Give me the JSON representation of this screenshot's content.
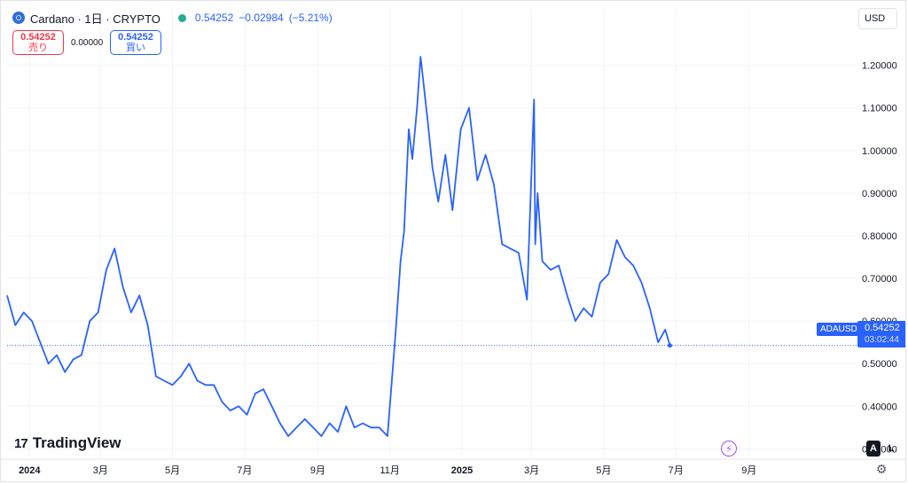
{
  "header": {
    "symbol": "Cardano · 1日 · CRYPTO",
    "last": "0.54252",
    "change": "−0.02984",
    "change_pct": "(−5.21%)"
  },
  "trade": {
    "sell_price": "0.54252",
    "sell_label": "売り",
    "spread": "0.00000",
    "buy_price": "0.54252",
    "buy_label": "買い"
  },
  "currency": "USD",
  "price_tag": {
    "symbol": "ADAUSD",
    "price": "0.54252",
    "countdown": "03:02:44"
  },
  "brand": {
    "name": "TradingView"
  },
  "controls": {
    "auto": "A",
    "log": "L"
  },
  "colors": {
    "line": "#2962ff",
    "grid": "#f0f3fa",
    "last_line": "#2962ff",
    "sell": "#f23645",
    "buy": "#2962ff"
  },
  "chart_data": {
    "type": "line",
    "series": [
      {
        "x": [
          "2023-12-13",
          "2023-12-20",
          "2023-12-27",
          "2024-01-03",
          "2024-01-10",
          "2024-01-17",
          "2024-01-24",
          "2024-01-31",
          "2024-02-07",
          "2024-02-14",
          "2024-02-21",
          "2024-02-28",
          "2024-03-06",
          "2024-03-13",
          "2024-03-20",
          "2024-03-27",
          "2024-04-03",
          "2024-04-10",
          "2024-04-17",
          "2024-04-24",
          "2024-05-01",
          "2024-05-08",
          "2024-05-15",
          "2024-05-22",
          "2024-05-29",
          "2024-06-05",
          "2024-06-12",
          "2024-06-19",
          "2024-06-26",
          "2024-07-03",
          "2024-07-10",
          "2024-07-17",
          "2024-07-24",
          "2024-07-31",
          "2024-08-07",
          "2024-08-14",
          "2024-08-21",
          "2024-08-28",
          "2024-09-04",
          "2024-09-11",
          "2024-09-18",
          "2024-09-25",
          "2024-10-02",
          "2024-10-09",
          "2024-10-16",
          "2024-10-23",
          "2024-10-30",
          "2024-11-06",
          "2024-11-10",
          "2024-11-13",
          "2024-11-17",
          "2024-11-20",
          "2024-11-24",
          "2024-11-27",
          "2024-12-03",
          "2024-12-07",
          "2024-12-12",
          "2024-12-18",
          "2024-12-24",
          "2024-12-31",
          "2025-01-07",
          "2025-01-14",
          "2025-01-21",
          "2025-01-28",
          "2025-02-04",
          "2025-02-11",
          "2025-02-18",
          "2025-02-25",
          "2025-03-03",
          "2025-03-04",
          "2025-03-06",
          "2025-03-10",
          "2025-03-17",
          "2025-03-24",
          "2025-03-31",
          "2025-04-07",
          "2025-04-14",
          "2025-04-21",
          "2025-04-28",
          "2025-05-05",
          "2025-05-12",
          "2025-05-19",
          "2025-05-26",
          "2025-06-02",
          "2025-06-09",
          "2025-06-16",
          "2025-06-22",
          "2025-06-26"
        ],
        "values": [
          0.66,
          0.59,
          0.62,
          0.6,
          0.55,
          0.5,
          0.52,
          0.48,
          0.51,
          0.52,
          0.6,
          0.62,
          0.72,
          0.77,
          0.68,
          0.62,
          0.66,
          0.59,
          0.47,
          0.46,
          0.45,
          0.47,
          0.5,
          0.46,
          0.45,
          0.45,
          0.41,
          0.39,
          0.4,
          0.38,
          0.43,
          0.44,
          0.4,
          0.36,
          0.33,
          0.35,
          0.37,
          0.35,
          0.33,
          0.36,
          0.34,
          0.4,
          0.35,
          0.36,
          0.35,
          0.35,
          0.33,
          0.58,
          0.74,
          0.81,
          1.05,
          0.98,
          1.1,
          1.22,
          1.07,
          0.96,
          0.88,
          0.99,
          0.86,
          1.05,
          1.1,
          0.93,
          0.99,
          0.92,
          0.78,
          0.77,
          0.76,
          0.65,
          1.12,
          0.78,
          0.9,
          0.74,
          0.72,
          0.73,
          0.66,
          0.6,
          0.63,
          0.61,
          0.69,
          0.71,
          0.79,
          0.75,
          0.73,
          0.69,
          0.63,
          0.55,
          0.58,
          0.54252
        ]
      }
    ],
    "x_ticks": [
      "2024",
      "3月",
      "5月",
      "7月",
      "9月",
      "11月",
      "2025",
      "3月",
      "5月",
      "7月",
      "9月"
    ],
    "y_ticks": [
      "0.30000",
      "0.40000",
      "0.50000",
      "0.60000",
      "0.70000",
      "0.80000",
      "0.90000",
      "1.00000",
      "1.10000",
      "1.20000"
    ],
    "ylim": [
      0.28,
      1.27
    ],
    "last_value": 0.54252,
    "grid": true
  }
}
